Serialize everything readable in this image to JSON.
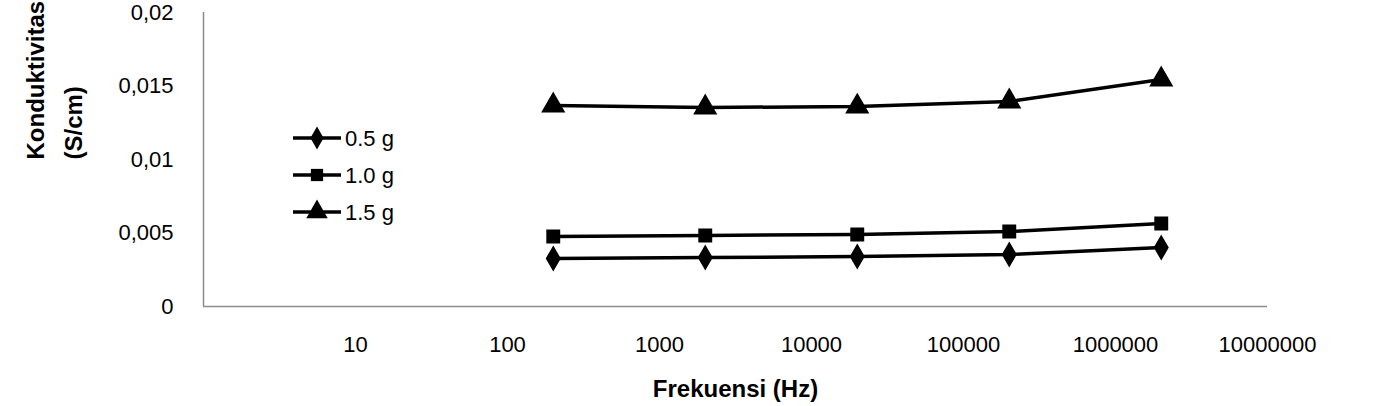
{
  "chart_data": {
    "type": "line",
    "xlabel": "Frekuensi (Hz)",
    "ylabel": "Konduktivitas\n(S/cm)",
    "log": "x",
    "x": [
      200,
      2000,
      20000,
      200000,
      2000000
    ],
    "xlim": [
      1,
      10000000
    ],
    "xticks": [
      10,
      100,
      1000,
      10000,
      100000,
      1000000,
      10000000
    ],
    "ylim": [
      0,
      0.02
    ],
    "yticks": [
      0,
      {
        "value": 0.005,
        "label": "0,005"
      },
      {
        "value": 0.01,
        "label": "0,01"
      },
      {
        "value": 0.015,
        "label": "0,015"
      },
      {
        "value": 0.02,
        "label": "0,02"
      }
    ],
    "grid": false,
    "legend": "left",
    "series": [
      {
        "name": "0.5 g",
        "color": "#000000",
        "marker": "diamond",
        "line_style": "solid",
        "values": [
          0.00327,
          0.00333,
          0.0034,
          0.00354,
          0.00401
        ]
      },
      {
        "name": "1.0 g",
        "color": "#000000",
        "marker": "square",
        "line_style": "solid",
        "values": [
          0.00476,
          0.00483,
          0.0049,
          0.0051,
          0.00565
        ]
      },
      {
        "name": "1.5 g",
        "color": "#000000",
        "marker": "triangle",
        "line_style": "solid",
        "values": [
          0.01367,
          0.01354,
          0.0136,
          0.01395,
          0.01544
        ]
      }
    ]
  }
}
